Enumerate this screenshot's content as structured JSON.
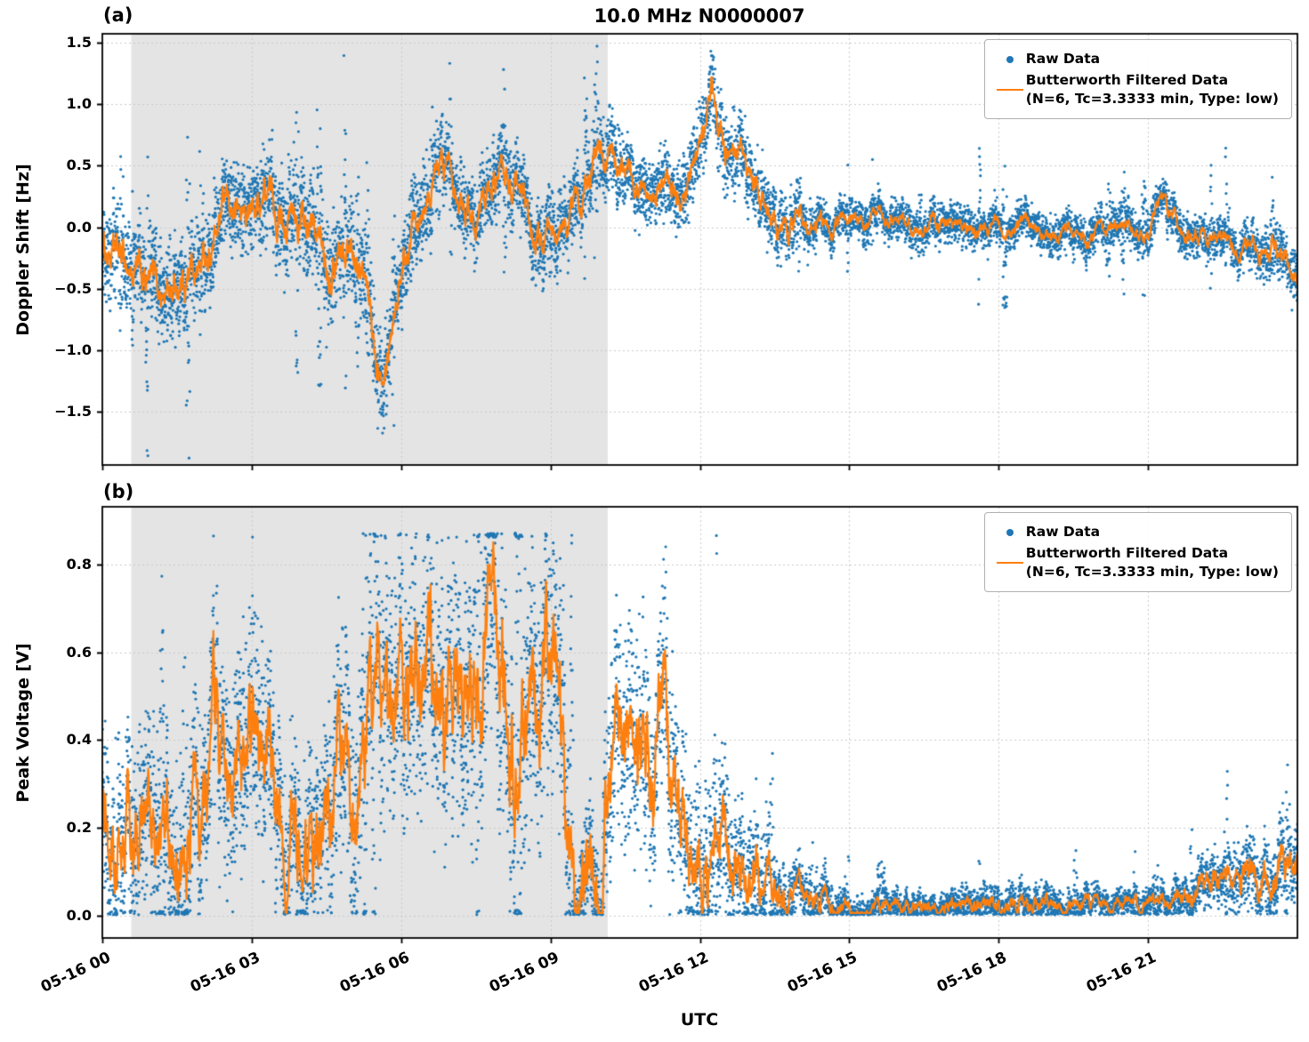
{
  "title": "10.0 MHz N0000007",
  "xlabel": "UTC",
  "panel_a_tag": "(a)",
  "panel_b_tag": "(b)",
  "legend": {
    "raw_label": "Raw Data",
    "filtered_label_line1": "Butterworth Filtered Data",
    "filtered_label_line2": "(N=6, Tc=3.3333 min, Type: low)"
  },
  "colors": {
    "raw": "#1f77b4",
    "filtered": "#ff7f0e",
    "shade": "#e4e4e4",
    "grid": "#c9c9c9",
    "spine": "#000000"
  },
  "chart_data": [
    {
      "type": "scatter",
      "panel": "a",
      "title": "10.0 MHz N0000007",
      "ylabel": "Doppler Shift [Hz]",
      "xlabel": "UTC",
      "x_unit": "hours after 05-16 00:00 UTC",
      "xlim_hours": [
        0,
        24
      ],
      "ylim": [
        -1.93,
        1.57
      ],
      "xticks_hours": [
        0,
        3,
        6,
        9,
        12,
        15,
        18,
        21
      ],
      "xtick_labels": [
        "05-16 00",
        "05-16 03",
        "05-16 06",
        "05-16 09",
        "05-16 12",
        "05-16 15",
        "05-16 18",
        "05-16 21"
      ],
      "yticks": [
        1.5,
        1.0,
        0.5,
        0.0,
        -0.5,
        -1.0,
        -1.5
      ],
      "ytick_labels": [
        "1.5",
        "1.0",
        "0.5",
        "0.0",
        "−0.5",
        "−1.0",
        "−1.5"
      ],
      "shaded_region_hours": [
        0.58,
        10.15
      ],
      "grid": true,
      "legend_position": "upper right",
      "series": [
        {
          "name": "Raw Data",
          "type": "scatter",
          "color": "#1f77b4",
          "marker": "point",
          "spread_step_hours": 1.0,
          "spread": [
            0.35,
            0.4,
            0.35,
            0.35,
            0.4,
            0.4,
            0.35,
            0.3,
            0.3,
            0.3,
            0.3,
            0.25,
            0.3,
            0.3,
            0.2,
            0.15,
            0.15,
            0.15,
            0.15,
            0.15,
            0.15,
            0.18,
            0.15,
            0.18,
            0.25
          ],
          "clip": [
            -1.88,
            1.47
          ]
        },
        {
          "name": "Butterworth Filtered Data (N=6, Tc=3.3333 min, Type: low)",
          "type": "line",
          "color": "#ff7f0e",
          "x_step_hours": 0.25,
          "values": [
            -0.15,
            -0.25,
            -0.3,
            -0.45,
            -0.5,
            -0.55,
            -0.45,
            -0.35,
            -0.3,
            -0.1,
            0.15,
            0.1,
            0.1,
            0.3,
            0.15,
            0.1,
            0.0,
            -0.1,
            -0.25,
            -0.2,
            -0.15,
            -0.45,
            -1.1,
            -0.8,
            -0.3,
            0.1,
            0.35,
            0.45,
            0.55,
            0.3,
            0.1,
            0.35,
            0.45,
            0.3,
            0.05,
            -0.1,
            -0.2,
            -0.05,
            0.2,
            0.3,
            0.7,
            0.55,
            0.4,
            0.35,
            0.4,
            0.35,
            0.25,
            0.3,
            0.6,
            1.1,
            0.6,
            0.45,
            0.35,
            0.2,
            0.05,
            0.0,
            0.1,
            0.05,
            0.0,
            0.05,
            0.1,
            0.05,
            0.05,
            0.0,
            0.05,
            0.0,
            0.0,
            0.05,
            0.0,
            0.0,
            -0.05,
            0.0,
            0.0,
            -0.05,
            0.0,
            -0.05,
            -0.05,
            0.0,
            -0.05,
            -0.1,
            -0.05,
            0.0,
            -0.05,
            0.0,
            -0.05,
            0.2,
            0.05,
            -0.05,
            -0.1,
            -0.05,
            -0.1,
            -0.15,
            -0.1,
            -0.2,
            -0.15,
            -0.3,
            -0.5
          ]
        }
      ]
    },
    {
      "type": "scatter",
      "panel": "b",
      "ylabel": "Peak Voltage [V]",
      "xlabel": "UTC",
      "x_unit": "hours after 05-16 00:00 UTC",
      "xlim_hours": [
        0,
        24
      ],
      "ylim": [
        -0.051,
        0.932
      ],
      "xticks_hours": [
        0,
        3,
        6,
        9,
        12,
        15,
        18,
        21
      ],
      "xtick_labels": [
        "05-16 00",
        "05-16 03",
        "05-16 06",
        "05-16 09",
        "05-16 12",
        "05-16 15",
        "05-16 18",
        "05-16 21"
      ],
      "yticks": [
        0.8,
        0.6,
        0.4,
        0.2,
        0.0
      ],
      "ytick_labels": [
        "0.8",
        "0.6",
        "0.4",
        "0.2",
        "0.0"
      ],
      "shaded_region_hours": [
        0.58,
        10.15
      ],
      "grid": true,
      "legend_position": "upper right",
      "series": [
        {
          "name": "Raw Data",
          "type": "scatter",
          "color": "#1f77b4",
          "marker": "point",
          "spread_step_hours": 1.0,
          "spread": [
            0.2,
            0.22,
            0.22,
            0.22,
            0.2,
            0.25,
            0.28,
            0.28,
            0.28,
            0.28,
            0.2,
            0.25,
            0.2,
            0.15,
            0.06,
            0.04,
            0.03,
            0.03,
            0.04,
            0.04,
            0.03,
            0.03,
            0.05,
            0.08,
            0.09
          ],
          "clip": [
            0.002,
            0.872
          ]
        },
        {
          "name": "Butterworth Filtered Data (N=6, Tc=3.3333 min, Type: low)",
          "type": "line",
          "color": "#ff7f0e",
          "x_step_hours": 0.25,
          "values": [
            0.18,
            0.12,
            0.2,
            0.15,
            0.22,
            0.15,
            0.12,
            0.2,
            0.28,
            0.5,
            0.3,
            0.25,
            0.3,
            0.35,
            0.25,
            0.2,
            0.15,
            0.12,
            0.2,
            0.45,
            0.3,
            0.35,
            0.55,
            0.5,
            0.55,
            0.45,
            0.5,
            0.55,
            0.5,
            0.4,
            0.45,
            0.55,
            0.6,
            0.45,
            0.35,
            0.55,
            0.6,
            0.3,
            0.05,
            0.06,
            0.06,
            0.45,
            0.5,
            0.4,
            0.35,
            0.45,
            0.3,
            0.25,
            0.15,
            0.2,
            0.12,
            0.1,
            0.1,
            0.08,
            0.03,
            0.03,
            0.04,
            0.03,
            0.03,
            0.02,
            0.02,
            0.02,
            0.02,
            0.02,
            0.01,
            0.02,
            0.02,
            0.01,
            0.02,
            0.03,
            0.02,
            0.02,
            0.02,
            0.03,
            0.02,
            0.02,
            0.02,
            0.02,
            0.03,
            0.02,
            0.02,
            0.02,
            0.02,
            0.03,
            0.02,
            0.03,
            0.03,
            0.04,
            0.05,
            0.06,
            0.08,
            0.08,
            0.09,
            0.1,
            0.08,
            0.12,
            0.13
          ]
        }
      ]
    }
  ]
}
